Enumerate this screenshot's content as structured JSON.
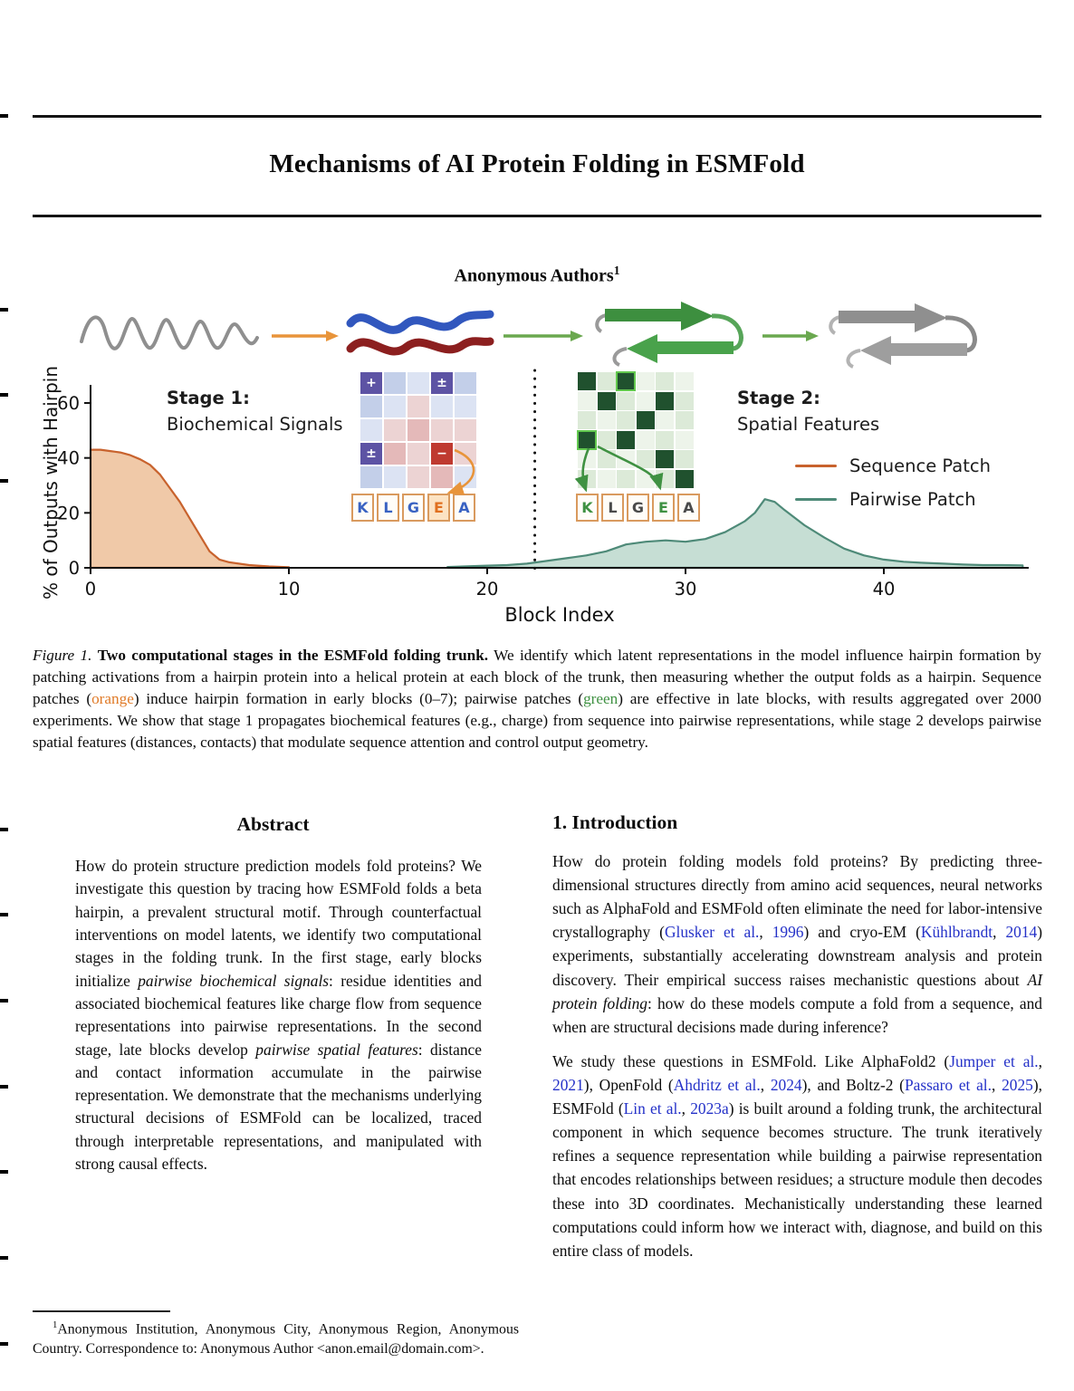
{
  "page": {
    "title": "Mechanisms of AI Protein Folding in ESMFold",
    "authors": "Anonymous Authors",
    "authors_sup": "1"
  },
  "figure": {
    "stage1_title": "Stage 1:",
    "stage1_subtitle": "Biochemical Signals",
    "stage2_title": "Stage 2:",
    "stage2_subtitle": "Spatial Features",
    "legend": [
      {
        "label": "Sequence Patch",
        "color": "#c8622d"
      },
      {
        "label": "Pairwise Patch",
        "color": "#4e8a78"
      }
    ],
    "sequence_letters_1": [
      {
        "ch": "K",
        "color": "#3a63c2"
      },
      {
        "ch": "L",
        "color": "#3a63c2"
      },
      {
        "ch": "G",
        "color": "#3a63c2"
      },
      {
        "ch": "E",
        "color": "#e0701f",
        "bg": "#fce3c3"
      },
      {
        "ch": "A",
        "color": "#3a63c2"
      }
    ],
    "sequence_letters_2": [
      {
        "ch": "K",
        "color": "#3f9142"
      },
      {
        "ch": "L",
        "color": "#4a4a4a"
      },
      {
        "ch": "G",
        "color": "#4a4a4a"
      },
      {
        "ch": "E",
        "color": "#3f9142"
      },
      {
        "ch": "A",
        "color": "#4a4a4a"
      }
    ],
    "grid1": {
      "cols": 5,
      "cell": 24,
      "gap": 2,
      "cells": [
        {
          "bg": "#5d53a4",
          "sym": "+"
        },
        {
          "bg": "#c3cfe9"
        },
        {
          "bg": "#dce3f3"
        },
        {
          "bg": "#5d53a4",
          "sym": "±"
        },
        {
          "bg": "#c3cfe9"
        },
        {
          "bg": "#c3cfe9"
        },
        {
          "bg": "#dce3f3"
        },
        {
          "bg": "#ecd3d3"
        },
        {
          "bg": "#dce3f3"
        },
        {
          "bg": "#dce3f3"
        },
        {
          "bg": "#dce3f3"
        },
        {
          "bg": "#ecd3d3"
        },
        {
          "bg": "#e4b9b9"
        },
        {
          "bg": "#ecd3d3"
        },
        {
          "bg": "#ecd3d3"
        },
        {
          "bg": "#5d53a4",
          "sym": "±"
        },
        {
          "bg": "#e4b9b9"
        },
        {
          "bg": "#ecd3d3"
        },
        {
          "bg": "#bf3a30",
          "sym": "−"
        },
        {
          "bg": "#ecd3d3"
        },
        {
          "bg": "#c3cfe9"
        },
        {
          "bg": "#dce3f3"
        },
        {
          "bg": "#ecd3d3"
        },
        {
          "bg": "#e4b9b9"
        },
        {
          "bg": "#dce3f3"
        }
      ]
    },
    "grid2": {
      "cols": 6,
      "cell": 20,
      "gap": 1.5,
      "cells": [
        {
          "bg": "#20512e"
        },
        {
          "bg": "#dcead8"
        },
        {
          "bg": "#20512e",
          "border": "#62c84e"
        },
        {
          "bg": "#edf4ea"
        },
        {
          "bg": "#dcead8"
        },
        {
          "bg": "#edf4ea"
        },
        {
          "bg": "#edf4ea"
        },
        {
          "bg": "#20512e"
        },
        {
          "bg": "#dcead8"
        },
        {
          "bg": "#edf4ea"
        },
        {
          "bg": "#20512e"
        },
        {
          "bg": "#dcead8"
        },
        {
          "bg": "#dcead8"
        },
        {
          "bg": "#edf4ea"
        },
        {
          "bg": "#dcead8"
        },
        {
          "bg": "#20512e"
        },
        {
          "bg": "#edf4ea"
        },
        {
          "bg": "#dcead8"
        },
        {
          "bg": "#20512e",
          "border": "#62c84e"
        },
        {
          "bg": "#dcead8"
        },
        {
          "bg": "#20512e"
        },
        {
          "bg": "#edf4ea"
        },
        {
          "bg": "#dcead8"
        },
        {
          "bg": "#edf4ea"
        },
        {
          "bg": "#edf4ea"
        },
        {
          "bg": "#dcead8"
        },
        {
          "bg": "#edf4ea"
        },
        {
          "bg": "#dcead8"
        },
        {
          "bg": "#20512e"
        },
        {
          "bg": "#dcead8"
        },
        {
          "bg": "#dcead8"
        },
        {
          "bg": "#edf4ea"
        },
        {
          "bg": "#dcead8"
        },
        {
          "bg": "#edf4ea"
        },
        {
          "bg": "#dcead8"
        },
        {
          "bg": "#20512e"
        }
      ]
    },
    "chart_data": {
      "type": "area",
      "xlabel": "Block Index",
      "ylabel": "% of Outputs with Hairpin",
      "xlim": [
        0,
        47.5
      ],
      "ylim": [
        0,
        65
      ],
      "x_ticks": [
        0,
        10,
        20,
        30,
        40
      ],
      "y_ticks": [
        0,
        20,
        40,
        60
      ],
      "divider_x": 22.4,
      "grid": false,
      "legend_position": "right",
      "series": [
        {
          "name": "Sequence Patch",
          "color": "#c8622d",
          "fill": "#f0c9a8",
          "x": [
            0,
            0.5,
            1,
            1.5,
            2,
            2.5,
            3,
            3.5,
            4,
            4.5,
            5,
            5.5,
            6,
            6.5,
            7,
            8,
            9,
            10
          ],
          "y": [
            43,
            43,
            42.5,
            42,
            41,
            39.5,
            37.5,
            34,
            29,
            24,
            18,
            12,
            6,
            3,
            2,
            1,
            0.5,
            0.2
          ]
        },
        {
          "name": "Pairwise Patch",
          "color": "#4e8a78",
          "fill": "#c6ded4",
          "x": [
            18,
            20,
            21,
            22,
            23,
            24,
            25,
            26,
            27,
            28,
            29,
            30,
            31,
            32,
            33,
            33.5,
            34,
            34.5,
            35,
            36,
            37,
            38,
            39,
            40,
            41,
            42,
            43,
            44,
            45,
            46,
            47
          ],
          "y": [
            0.3,
            0.8,
            1,
            1.5,
            2.5,
            3.5,
            4.5,
            6,
            8.5,
            9.5,
            10,
            9.5,
            10.5,
            13,
            17,
            20,
            25,
            24,
            21,
            15.5,
            11,
            7,
            4.5,
            3,
            2.2,
            1.8,
            1.5,
            1.2,
            1,
            1,
            0.9
          ]
        }
      ]
    }
  },
  "caption": {
    "segments": [
      {
        "t": "Figure 1. ",
        "c": "i"
      },
      {
        "t": "Two computational stages in the ESMFold folding trunk.",
        "c": "b"
      },
      {
        "t": " We identify which latent representations in the model influence hairpin formation by patching activations from a hairpin protein into a helical protein at each block of the trunk, then measuring whether the output folds as a hairpin. Sequence patches ("
      },
      {
        "t": "orange",
        "c": "orange"
      },
      {
        "t": ") induce hairpin formation in early blocks (0–7); pairwise patches ("
      },
      {
        "t": "green",
        "c": "green"
      },
      {
        "t": ") are effective in late blocks, with results aggregated over 2000 experiments. We show that stage 1 propagates biochemical features (e.g., charge) from sequence into pairwise representations, while stage 2 develops pairwise spatial features (distances, contacts) that modulate sequence attention and control output geometry."
      }
    ]
  },
  "abstract": {
    "heading": "Abstract",
    "segments": [
      {
        "t": "How do protein structure prediction models fold proteins? We investigate this question by tracing how ESMFold folds a beta hairpin, a prevalent structural motif. Through counterfactual interventions on model latents, we identify two computational stages in the folding trunk. In the first stage, early blocks initialize "
      },
      {
        "t": "pairwise biochemical signals",
        "c": "i"
      },
      {
        "t": ": residue identities and associated biochemical features like charge flow from sequence representations into pairwise representations. In the second stage, late blocks develop "
      },
      {
        "t": "pairwise spatial features",
        "c": "i"
      },
      {
        "t": ": distance and contact information accumulate in the pairwise representation. We demonstrate that the mechanisms underlying structural decisions of ESMFold can be localized, traced through interpretable representations, and manipulated with strong causal effects."
      }
    ]
  },
  "introduction": {
    "heading": "1. Introduction",
    "para1": [
      {
        "t": "How do protein folding models fold proteins? By predicting three-dimensional structures directly from amino acid sequences, neural networks such as AlphaFold and ESMFold often eliminate the need for labor-intensive crystallography ("
      },
      {
        "t": "Glusker et al.",
        "c": "link"
      },
      {
        "t": ", "
      },
      {
        "t": "1996",
        "c": "link"
      },
      {
        "t": ") and cryo-EM ("
      },
      {
        "t": "Kühlbrandt",
        "c": "link"
      },
      {
        "t": ", "
      },
      {
        "t": "2014",
        "c": "link"
      },
      {
        "t": ") experiments, substantially accelerating downstream analysis and protein discovery. Their empirical success raises mechanistic questions about "
      },
      {
        "t": "AI protein folding",
        "c": "i"
      },
      {
        "t": ": how do these models compute a fold from a sequence, and when are structural decisions made during inference?"
      }
    ],
    "para2": [
      {
        "t": "We study these questions in ESMFold. Like AlphaFold2 ("
      },
      {
        "t": "Jumper et al.",
        "c": "link"
      },
      {
        "t": ", "
      },
      {
        "t": "2021",
        "c": "link"
      },
      {
        "t": "), OpenFold ("
      },
      {
        "t": "Ahdritz et al.",
        "c": "link"
      },
      {
        "t": ", "
      },
      {
        "t": "2024",
        "c": "link"
      },
      {
        "t": "), and Boltz-2  ("
      },
      {
        "t": "Passaro et al.",
        "c": "link"
      },
      {
        "t": ", "
      },
      {
        "t": "2025",
        "c": "link"
      },
      {
        "t": "), ESMFold ("
      },
      {
        "t": "Lin et al.",
        "c": "link"
      },
      {
        "t": ", "
      },
      {
        "t": "2023a",
        "c": "link"
      },
      {
        "t": ") is built around a folding trunk, the architectural component in which sequence becomes structure. The trunk iteratively refines a sequence representation while building a pairwise representation that encodes relationships between residues; a structure module then decodes these into 3D coordinates. Mechanistically understanding these learned computations could inform how we interact with, diagnose, and build on this entire class of models."
      }
    ]
  },
  "footnote": {
    "sup": "1",
    "text": "Anonymous Institution, Anonymous City, Anonymous Region, Anonymous Country.  Correspondence to: Anonymous Author <anon.email@domain.com>."
  }
}
